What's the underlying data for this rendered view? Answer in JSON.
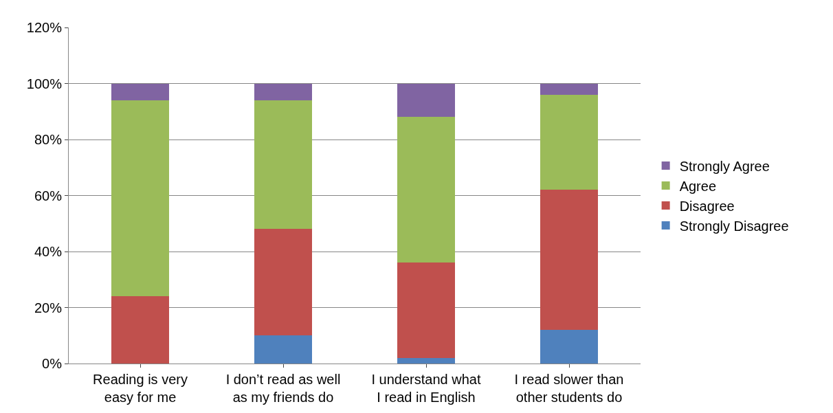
{
  "chart_data": {
    "type": "bar",
    "stacked": true,
    "categories": [
      "Reading is very\neasy for me",
      "I don’t read as well\nas my friends do",
      "I understand what\nI read in English",
      "I read slower than\nother students do"
    ],
    "series": [
      {
        "name": "Strongly Disagree",
        "color": "#4f81bd",
        "values": [
          0,
          10,
          2,
          12
        ]
      },
      {
        "name": "Disagree",
        "color": "#c0504d",
        "values": [
          24,
          38,
          34,
          50
        ]
      },
      {
        "name": "Agree",
        "color": "#9bbb59",
        "values": [
          70,
          46,
          52,
          34
        ]
      },
      {
        "name": "Strongly Agree",
        "color": "#8064a2",
        "values": [
          6,
          6,
          12,
          4
        ]
      }
    ],
    "ylim": [
      0,
      120
    ],
    "yticks": [
      {
        "value": 0,
        "label": "0%"
      },
      {
        "value": 20,
        "label": "20%"
      },
      {
        "value": 40,
        "label": "40%"
      },
      {
        "value": 60,
        "label": "60%"
      },
      {
        "value": 80,
        "label": "80%"
      },
      {
        "value": 100,
        "label": "100%"
      },
      {
        "value": 120,
        "label": "120%"
      }
    ],
    "grid": "y",
    "legend": "right"
  }
}
